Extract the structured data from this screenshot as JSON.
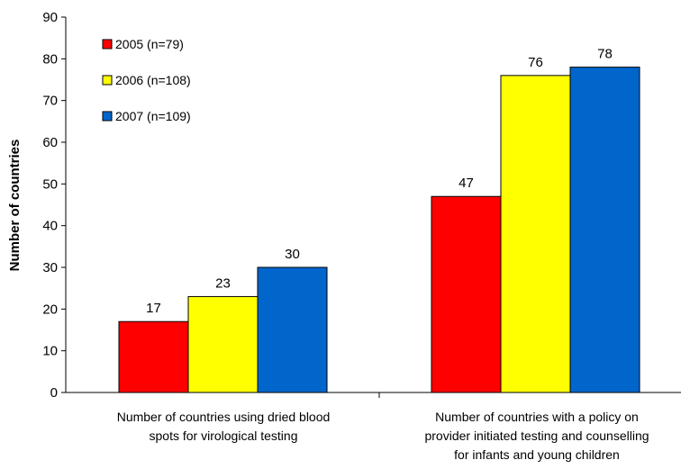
{
  "chart_data": {
    "type": "bar",
    "categories": [
      "Number of countries using dried blood spots for virological testing",
      "Number of countries with a policy on provider initiated testing and counselling for infants and young children"
    ],
    "category_lines": [
      [
        "Number of countries using dried blood",
        "spots for virological testing"
      ],
      [
        "Number of countries with a policy on",
        "provider initiated testing and counselling",
        "for infants and young children"
      ]
    ],
    "series": [
      {
        "name": "2005 (n=79)",
        "values": [
          17,
          47
        ],
        "color": "#ff0000"
      },
      {
        "name": "2006 (n=108)",
        "values": [
          23,
          76
        ],
        "color": "#ffff00"
      },
      {
        "name": "2007 (n=109)",
        "values": [
          30,
          78
        ],
        "color": "#0066cc"
      }
    ],
    "ylabel": "Number of countries",
    "xlabel": "",
    "ylim": [
      0,
      90
    ],
    "yticks": [
      "0",
      "10",
      "20",
      "30",
      "40",
      "50",
      "60",
      "70",
      "80",
      "90"
    ],
    "grid": false,
    "legend_position": "top-left"
  }
}
